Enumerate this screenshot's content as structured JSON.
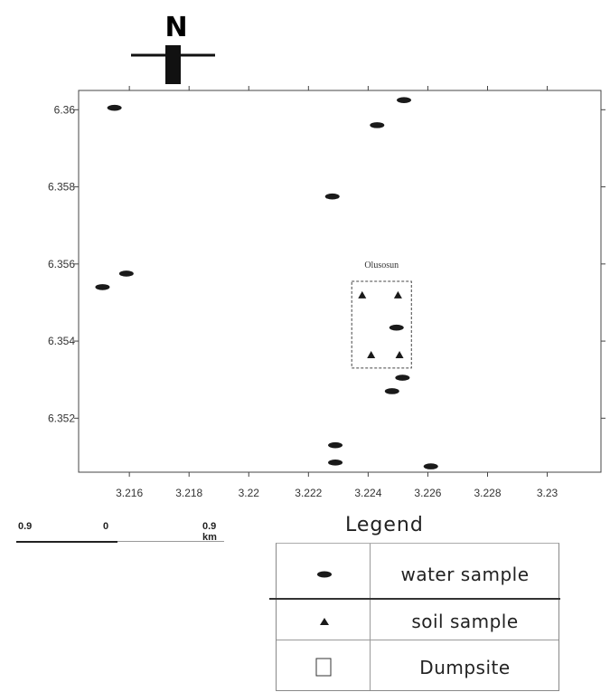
{
  "north_arrow": {
    "label": "N"
  },
  "map": {
    "site_label": "Olusosun",
    "x_axis": {
      "ticks": [
        {
          "value": 3216,
          "label": "3.216"
        },
        {
          "value": 3218,
          "label": "3.218"
        },
        {
          "value": 3220,
          "label": "3.22"
        },
        {
          "value": 3222,
          "label": "3.222"
        },
        {
          "value": 3224,
          "label": "3.224"
        },
        {
          "value": 3226,
          "label": "3.226"
        },
        {
          "value": 3228,
          "label": "3.228"
        },
        {
          "value": 3230,
          "label": "3.23"
        }
      ],
      "range": [
        3214.3,
        3231.8
      ]
    },
    "y_axis": {
      "ticks": [
        {
          "value": 6360,
          "label": "6.36"
        },
        {
          "value": 6358,
          "label": "6.358"
        },
        {
          "value": 6356,
          "label": "6.356"
        },
        {
          "value": 6354,
          "label": "6.354"
        },
        {
          "value": 6352,
          "label": "6.352"
        }
      ],
      "range": [
        6350.6,
        6360.5
      ]
    },
    "water_samples": [
      {
        "x": 3215.5,
        "y": 6360.05
      },
      {
        "x": 3225.2,
        "y": 6360.25
      },
      {
        "x": 3224.3,
        "y": 6359.6
      },
      {
        "x": 3222.8,
        "y": 6357.75
      },
      {
        "x": 3215.9,
        "y": 6355.75
      },
      {
        "x": 3215.1,
        "y": 6355.4
      },
      {
        "x": 3224.95,
        "y": 6354.35
      },
      {
        "x": 3225.15,
        "y": 6353.05
      },
      {
        "x": 3224.8,
        "y": 6352.7
      },
      {
        "x": 3222.9,
        "y": 6351.3
      },
      {
        "x": 3222.9,
        "y": 6350.85
      },
      {
        "x": 3226.1,
        "y": 6350.75
      }
    ],
    "soil_samples": [
      {
        "x": 3223.8,
        "y": 6355.2
      },
      {
        "x": 3225.0,
        "y": 6355.2
      },
      {
        "x": 3224.1,
        "y": 6353.65
      },
      {
        "x": 3225.05,
        "y": 6353.65
      }
    ],
    "dumpsite": {
      "x_min": 3223.45,
      "x_max": 3225.45,
      "y_min": 6353.3,
      "y_max": 6355.55
    }
  },
  "scale_bar": {
    "left_label": "0.9",
    "mid_label": "0",
    "right_label": "0.9 km"
  },
  "legend": {
    "title": "Legend",
    "items": [
      {
        "symbol": "water-sample-icon",
        "label": "water sample"
      },
      {
        "symbol": "soil-sample-icon",
        "label": "soil sample"
      },
      {
        "symbol": "dumpsite-icon",
        "label": "Dumpsite"
      }
    ]
  }
}
